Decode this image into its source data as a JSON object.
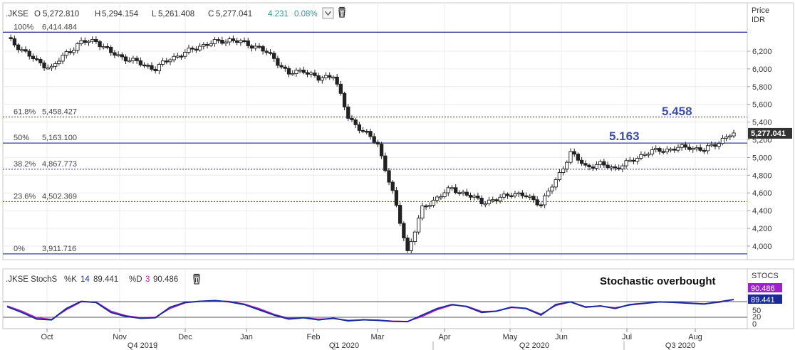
{
  "header": {
    "symbol": ".JKSE",
    "open_label": "O",
    "open": "5,272.810",
    "high_label": "H",
    "high": "5,294.154",
    "low_label": "L",
    "low": "5,261.408",
    "close_label": "C",
    "close": "5,277.041",
    "change": "4.231",
    "change_pct": "0.08%"
  },
  "price_axis": {
    "title_line1": "Price",
    "title_line2": "IDR",
    "ticks": [
      "6,200",
      "6,000",
      "5,800",
      "5,600",
      "5,400",
      "5,200",
      "5,000",
      "4,800",
      "4,600",
      "4,400",
      "4,200",
      "4,000"
    ],
    "last_price": "5,277.041"
  },
  "fib_levels": [
    {
      "pct": "100%",
      "value": "6,414.484"
    },
    {
      "pct": "61.8%",
      "value": "5,458.427"
    },
    {
      "pct": "50%",
      "value": "5,163.100"
    },
    {
      "pct": "38.2%",
      "value": "4,867.773"
    },
    {
      "pct": "23.6%",
      "value": "4,502.369"
    },
    {
      "pct": "0%",
      "value": "3,911.716"
    }
  ],
  "callouts": {
    "upper": "5.458",
    "lower": "5.163"
  },
  "stoch": {
    "title": ".JKSE StochS",
    "k_label": "%K",
    "k_period": "14",
    "k_value": "89.441",
    "d_label": "%D",
    "d_period": "3",
    "d_value": "90.486",
    "axis_title": "STOCS",
    "ticks": [
      "50",
      "20",
      "0"
    ],
    "annotation": "Stochastic overbought"
  },
  "x_axis": {
    "months": [
      "Oct",
      "Nov",
      "Dec",
      "Jan",
      "Feb",
      "Mar",
      "Apr",
      "May",
      "Jun",
      "Jul",
      "Aug"
    ],
    "quarters": [
      "Q4 2019",
      "Q1 2020",
      "Q2 2020",
      "Q3 2020"
    ]
  },
  "colors": {
    "fib_solid": "#3a3fa0",
    "fib_dotted": "#2a2f8a",
    "up_candle": "#ffffff",
    "down_candle": "#222222",
    "k_line": "#1b2a9a",
    "d_line": "#c020c0",
    "change_text": "#2a9d8f",
    "d_badge": "#a020d0",
    "k_badge": "#1b2a9a"
  },
  "chart_data": {
    "type": "line",
    "title": ".JKSE",
    "ylabel": "Price IDR",
    "ylim": [
      3850,
      6450
    ],
    "x": [
      "2019-09-20",
      "2019-09-27",
      "2019-10-04",
      "2019-10-11",
      "2019-10-18",
      "2019-10-25",
      "2019-11-01",
      "2019-11-08",
      "2019-11-15",
      "2019-11-22",
      "2019-11-29",
      "2019-12-06",
      "2019-12-13",
      "2019-12-20",
      "2019-12-27",
      "2020-01-03",
      "2020-01-10",
      "2020-01-17",
      "2020-01-24",
      "2020-01-31",
      "2020-02-07",
      "2020-02-14",
      "2020-02-21",
      "2020-02-28",
      "2020-03-06",
      "2020-03-13",
      "2020-03-20",
      "2020-03-24",
      "2020-03-27",
      "2020-04-03",
      "2020-04-09",
      "2020-04-17",
      "2020-04-24",
      "2020-05-01",
      "2020-05-08",
      "2020-05-15",
      "2020-05-22",
      "2020-05-29",
      "2020-06-05",
      "2020-06-12",
      "2020-06-19",
      "2020-06-26",
      "2020-07-03",
      "2020-07-10",
      "2020-07-17",
      "2020-07-24",
      "2020-07-31",
      "2020-08-07",
      "2020-08-14",
      "2020-08-21"
    ],
    "series": [
      {
        "name": "Close",
        "values": [
          6340,
          6220,
          6080,
          6010,
          6180,
          6300,
          6320,
          6180,
          6120,
          6060,
          6000,
          6120,
          6180,
          6260,
          6300,
          6330,
          6290,
          6240,
          6120,
          5940,
          5990,
          5880,
          5940,
          5450,
          5300,
          5150,
          4600,
          3940,
          4420,
          4550,
          4650,
          4580,
          4500,
          4520,
          4600,
          4560,
          4480,
          4740,
          5050,
          4900,
          4920,
          4880,
          4950,
          5050,
          5080,
          5100,
          5120,
          5080,
          5180,
          5277
        ]
      },
      {
        "name": "%K",
        "values": [
          62,
          40,
          15,
          12,
          55,
          82,
          78,
          40,
          25,
          18,
          20,
          60,
          78,
          82,
          85,
          80,
          70,
          50,
          30,
          15,
          20,
          12,
          18,
          8,
          12,
          10,
          6,
          5,
          30,
          55,
          70,
          62,
          40,
          45,
          60,
          55,
          30,
          70,
          80,
          60,
          65,
          55,
          70,
          75,
          80,
          78,
          75,
          72,
          80,
          89
        ]
      },
      {
        "name": "%D",
        "values": [
          65,
          45,
          20,
          14,
          50,
          80,
          80,
          45,
          28,
          20,
          22,
          55,
          76,
          83,
          84,
          82,
          72,
          55,
          33,
          18,
          20,
          15,
          17,
          10,
          12,
          11,
          7,
          6,
          25,
          50,
          68,
          64,
          44,
          45,
          58,
          56,
          34,
          66,
          80,
          62,
          64,
          58,
          68,
          74,
          80,
          79,
          76,
          73,
          78,
          90
        ]
      }
    ]
  }
}
